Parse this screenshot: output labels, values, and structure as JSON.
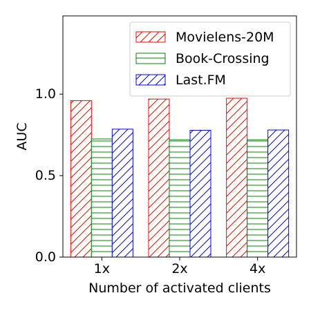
{
  "chart_data": {
    "type": "bar",
    "title": "",
    "xlabel": "Number of activated clients",
    "ylabel": "AUC",
    "categories": [
      "1x",
      "2x",
      "4x"
    ],
    "ylim": [
      0,
      1.48
    ],
    "yticks": [
      0.0,
      0.5,
      1.0
    ],
    "ytick_labels": [
      "0.0",
      "0.5",
      "1.0"
    ],
    "grid": false,
    "legend_position": "top-right",
    "series": [
      {
        "name": "Movielens-20M",
        "values": [
          0.96,
          0.97,
          0.975
        ],
        "color": "#ff0000",
        "hatch": "diagonal"
      },
      {
        "name": "Book-Crossing",
        "values": [
          0.725,
          0.72,
          0.72
        ],
        "color": "#008000",
        "hatch": "horizontal"
      },
      {
        "name": "Last.FM",
        "values": [
          0.785,
          0.778,
          0.78
        ],
        "color": "#0000ff",
        "hatch": "diagonal"
      }
    ]
  }
}
